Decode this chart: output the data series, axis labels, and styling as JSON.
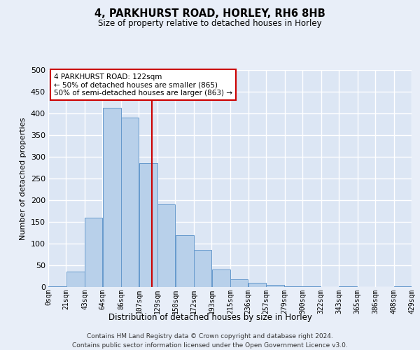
{
  "title": "4, PARKHURST ROAD, HORLEY, RH6 8HB",
  "subtitle": "Size of property relative to detached houses in Horley",
  "xlabel": "Distribution of detached houses by size in Horley",
  "ylabel": "Number of detached properties",
  "footnote1": "Contains HM Land Registry data © Crown copyright and database right 2024.",
  "footnote2": "Contains public sector information licensed under the Open Government Licence v3.0.",
  "annotation_title": "4 PARKHURST ROAD: 122sqm",
  "annotation_line1": "← 50% of detached houses are smaller (865)",
  "annotation_line2": "50% of semi-detached houses are larger (863) →",
  "property_size": 122,
  "bin_edges": [
    0,
    21,
    43,
    64,
    86,
    107,
    129,
    150,
    172,
    193,
    215,
    236,
    257,
    279,
    300,
    322,
    343,
    365,
    386,
    408,
    429
  ],
  "bin_labels": [
    "0sqm",
    "21sqm",
    "43sqm",
    "64sqm",
    "86sqm",
    "107sqm",
    "129sqm",
    "150sqm",
    "172sqm",
    "193sqm",
    "215sqm",
    "236sqm",
    "257sqm",
    "279sqm",
    "300sqm",
    "322sqm",
    "343sqm",
    "365sqm",
    "386sqm",
    "408sqm",
    "429sqm"
  ],
  "counts": [
    2,
    35,
    160,
    413,
    390,
    285,
    190,
    120,
    85,
    40,
    17,
    10,
    5,
    2,
    1,
    0,
    2,
    0,
    0,
    1
  ],
  "bar_color": "#b8d0ea",
  "bar_edge_color": "#6699cc",
  "vline_color": "#cc0000",
  "vline_x": 122,
  "annotation_box_color": "#ffffff",
  "annotation_box_edge": "#cc0000",
  "bg_color": "#e8eef8",
  "plot_bg_color": "#dce6f4",
  "grid_color": "#ffffff",
  "ylim": [
    0,
    500
  ],
  "yticks": [
    0,
    50,
    100,
    150,
    200,
    250,
    300,
    350,
    400,
    450,
    500
  ]
}
